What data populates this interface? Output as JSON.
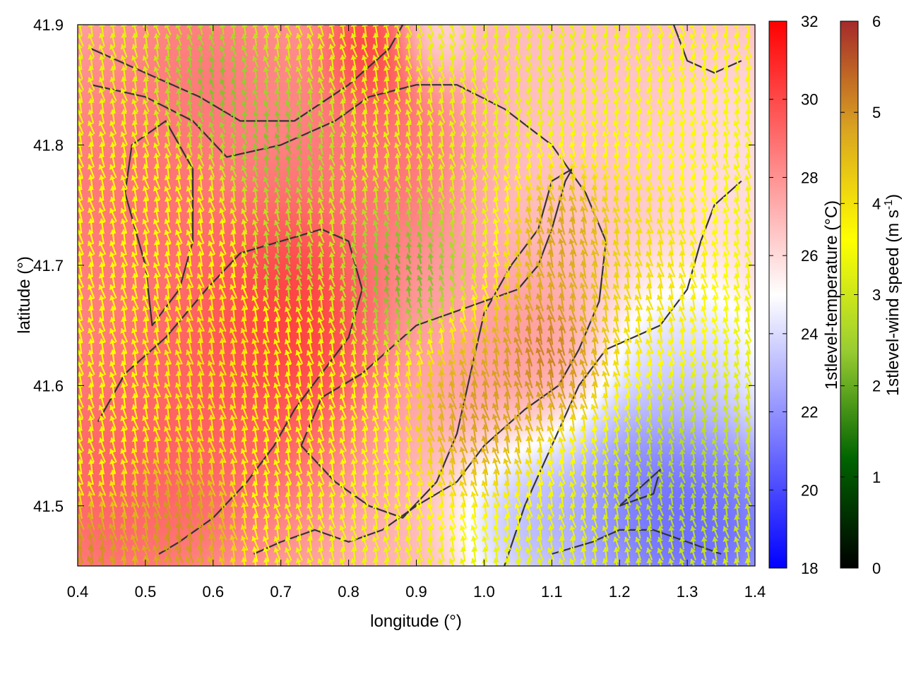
{
  "chart_data": {
    "type": "heatmap",
    "xlabel": "longitude (°)",
    "ylabel": "latitude (°)",
    "xlim": [
      0.4,
      1.4
    ],
    "ylim": [
      41.45,
      41.9
    ],
    "x_ticks": [
      "0.4",
      "0.5",
      "0.6",
      "0.7",
      "0.8",
      "0.9",
      "1.0",
      "1.1",
      "1.2",
      "1.3",
      "1.4"
    ],
    "y_ticks": [
      "41.5",
      "41.6",
      "41.7",
      "41.8",
      "41.9"
    ],
    "temperature_colorbar": {
      "label": "1stlevel-temperature (°C)",
      "range": [
        18,
        32
      ],
      "ticks": [
        "18",
        "20",
        "22",
        "24",
        "26",
        "28",
        "30",
        "32"
      ],
      "colors": [
        "#0000ff",
        "#ffffff",
        "#ff0000"
      ]
    },
    "wind_colorbar": {
      "label_main": "1stlevel-wind speed (m s",
      "label_sup": "-1",
      "label_end": ")",
      "range": [
        0,
        6
      ],
      "ticks": [
        "0",
        "1",
        "2",
        "3",
        "4",
        "5",
        "6"
      ],
      "colors": [
        "#000000",
        "#006400",
        "#9acd32",
        "#ffff00",
        "#daa520",
        "#a52a2a"
      ]
    },
    "wind_direction_deg_from_north": 345,
    "temperature_features": [
      {
        "lon": 0.71,
        "lat": 41.66,
        "value": 31.5,
        "spread": 0.11
      },
      {
        "lon": 0.5,
        "lat": 41.75,
        "value": 29.5,
        "spread": 0.16
      },
      {
        "lon": 0.45,
        "lat": 41.52,
        "value": 30,
        "spread": 0.12
      },
      {
        "lon": 0.62,
        "lat": 41.58,
        "value": 30,
        "spread": 0.14
      },
      {
        "lon": 0.85,
        "lat": 41.8,
        "value": 29.5,
        "spread": 0.12
      },
      {
        "lon": 0.6,
        "lat": 41.87,
        "value": 29,
        "spread": 0.1
      },
      {
        "lon": 0.84,
        "lat": 41.88,
        "value": 31.5,
        "spread": 0.06
      },
      {
        "lon": 1.05,
        "lat": 41.63,
        "value": 28,
        "spread": 0.1
      },
      {
        "lon": 1.25,
        "lat": 41.5,
        "value": 19.5,
        "spread": 0.12
      },
      {
        "lon": 1.35,
        "lat": 41.48,
        "value": 19.5,
        "spread": 0.1
      },
      {
        "lon": 1.08,
        "lat": 41.49,
        "value": 22,
        "spread": 0.09
      },
      {
        "lon": 1.3,
        "lat": 41.62,
        "value": 23,
        "spread": 0.1
      },
      {
        "lon": 1.38,
        "lat": 41.78,
        "value": 25.5,
        "spread": 0.12
      },
      {
        "lon": 0.92,
        "lat": 41.89,
        "value": 25,
        "spread": 0.05
      },
      {
        "lon": 1.15,
        "lat": 41.8,
        "value": 26.5,
        "spread": 0.15
      }
    ],
    "wind_features": [
      {
        "lon": 0.7,
        "lat": 41.8,
        "value": 1.8,
        "spread": 0.06
      },
      {
        "lon": 0.7,
        "lat": 41.7,
        "value": 1.8,
        "spread": 0.04
      },
      {
        "lon": 0.6,
        "lat": 41.85,
        "value": 1.8,
        "spread": 0.06
      },
      {
        "lon": 0.88,
        "lat": 41.69,
        "value": 1.6,
        "spread": 0.07
      },
      {
        "lon": 1.1,
        "lat": 41.63,
        "value": 5.9,
        "spread": 0.07
      },
      {
        "lon": 0.98,
        "lat": 41.58,
        "value": 5.5,
        "spread": 0.08
      },
      {
        "lon": 0.55,
        "lat": 41.48,
        "value": 5.7,
        "spread": 0.07
      },
      {
        "lon": 0.42,
        "lat": 41.46,
        "value": 5.7,
        "spread": 0.05
      },
      {
        "lon": 1.12,
        "lat": 41.72,
        "value": 5.5,
        "spread": 0.06
      },
      {
        "lon": 0.6,
        "lat": 41.62,
        "value": 4.2,
        "spread": 0.1
      },
      {
        "lon": 0.8,
        "lat": 41.56,
        "value": 3.6,
        "spread": 0.1
      },
      {
        "lon": 1.3,
        "lat": 41.52,
        "value": 2.4,
        "spread": 0.08
      },
      {
        "lon": 1.32,
        "lat": 41.85,
        "value": 3.6,
        "spread": 0.1
      },
      {
        "lon": 1.22,
        "lat": 41.7,
        "value": 4.3,
        "spread": 0.1
      },
      {
        "lon": 0.45,
        "lat": 41.7,
        "value": 3.7,
        "spread": 0.12
      }
    ],
    "wind_background": 3.3,
    "temperature_background": 27,
    "terrain_contours": [
      [
        [
          0.42,
          41.88
        ],
        [
          0.5,
          41.86
        ],
        [
          0.58,
          41.84
        ],
        [
          0.64,
          41.82
        ],
        [
          0.72,
          41.82
        ],
        [
          0.8,
          41.85
        ],
        [
          0.86,
          41.88
        ],
        [
          0.88,
          41.9
        ]
      ],
      [
        [
          0.42,
          41.85
        ],
        [
          0.5,
          41.84
        ],
        [
          0.57,
          41.82
        ],
        [
          0.62,
          41.79
        ],
        [
          0.7,
          41.8
        ],
        [
          0.78,
          41.82
        ],
        [
          0.83,
          41.84
        ],
        [
          0.9,
          41.85
        ],
        [
          0.96,
          41.85
        ],
        [
          1.03,
          41.83
        ],
        [
          1.1,
          41.8
        ],
        [
          1.15,
          41.76
        ],
        [
          1.18,
          41.72
        ],
        [
          1.17,
          41.67
        ],
        [
          1.14,
          41.63
        ],
        [
          1.11,
          41.6
        ],
        [
          1.06,
          41.58
        ],
        [
          1.0,
          41.55
        ],
        [
          0.96,
          41.52
        ],
        [
          0.9,
          41.5
        ],
        [
          0.85,
          41.48
        ],
        [
          0.8,
          41.47
        ],
        [
          0.75,
          41.48
        ],
        [
          0.7,
          41.47
        ],
        [
          0.66,
          41.46
        ]
      ],
      [
        [
          0.47,
          41.76
        ],
        [
          0.5,
          41.7
        ],
        [
          0.51,
          41.65
        ],
        [
          0.55,
          41.68
        ],
        [
          0.57,
          41.72
        ],
        [
          0.57,
          41.78
        ],
        [
          0.53,
          41.82
        ],
        [
          0.48,
          41.8
        ],
        [
          0.47,
          41.76
        ]
      ],
      [
        [
          0.43,
          41.57
        ],
        [
          0.47,
          41.61
        ],
        [
          0.53,
          41.64
        ],
        [
          0.59,
          41.68
        ],
        [
          0.64,
          41.71
        ],
        [
          0.7,
          41.72
        ],
        [
          0.76,
          41.73
        ],
        [
          0.8,
          41.72
        ],
        [
          0.82,
          41.68
        ],
        [
          0.8,
          41.64
        ],
        [
          0.76,
          41.61
        ],
        [
          0.72,
          41.58
        ],
        [
          0.69,
          41.55
        ],
        [
          0.65,
          41.52
        ],
        [
          0.6,
          41.49
        ],
        [
          0.55,
          41.47
        ],
        [
          0.52,
          41.46
        ]
      ],
      [
        [
          0.73,
          41.55
        ],
        [
          0.76,
          41.59
        ],
        [
          0.82,
          41.61
        ],
        [
          0.86,
          41.63
        ],
        [
          0.9,
          41.65
        ],
        [
          0.95,
          41.66
        ],
        [
          1.0,
          41.67
        ],
        [
          1.05,
          41.68
        ],
        [
          1.08,
          41.7
        ],
        [
          1.1,
          41.73
        ],
        [
          1.12,
          41.77
        ],
        [
          1.13,
          41.78
        ],
        [
          1.1,
          41.77
        ],
        [
          1.08,
          41.73
        ],
        [
          1.04,
          41.7
        ],
        [
          1.0,
          41.66
        ],
        [
          0.98,
          41.61
        ],
        [
          0.96,
          41.56
        ],
        [
          0.93,
          41.52
        ],
        [
          0.88,
          41.49
        ],
        [
          0.83,
          41.5
        ],
        [
          0.78,
          41.52
        ],
        [
          0.73,
          41.55
        ]
      ],
      [
        [
          1.03,
          41.45
        ],
        [
          1.06,
          41.5
        ],
        [
          1.1,
          41.55
        ],
        [
          1.14,
          41.6
        ],
        [
          1.18,
          41.63
        ],
        [
          1.22,
          41.64
        ],
        [
          1.26,
          41.65
        ],
        [
          1.3,
          41.68
        ],
        [
          1.32,
          41.72
        ],
        [
          1.34,
          41.75
        ],
        [
          1.38,
          41.77
        ]
      ],
      [
        [
          1.1,
          41.46
        ],
        [
          1.16,
          41.47
        ],
        [
          1.2,
          41.48
        ],
        [
          1.25,
          41.48
        ],
        [
          1.3,
          41.47
        ],
        [
          1.35,
          41.46
        ]
      ],
      [
        [
          1.2,
          41.5
        ],
        [
          1.25,
          41.51
        ],
        [
          1.26,
          41.53
        ],
        [
          1.24,
          41.52
        ],
        [
          1.2,
          41.5
        ]
      ],
      [
        [
          1.28,
          41.9
        ],
        [
          1.3,
          41.87
        ],
        [
          1.34,
          41.86
        ],
        [
          1.38,
          41.87
        ]
      ]
    ]
  }
}
